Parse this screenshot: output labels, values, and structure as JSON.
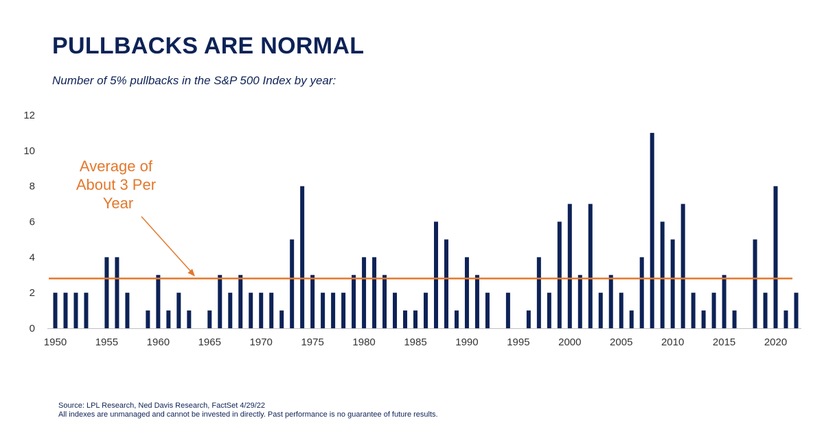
{
  "chart_data": {
    "type": "bar",
    "title": "PULLBACKS ARE NORMAL",
    "subtitle": "Number of 5% pullbacks in the S&P 500 Index by year:",
    "x": [
      1950,
      1951,
      1952,
      1953,
      1954,
      1955,
      1956,
      1957,
      1958,
      1959,
      1960,
      1961,
      1962,
      1963,
      1964,
      1965,
      1966,
      1967,
      1968,
      1969,
      1970,
      1971,
      1972,
      1973,
      1974,
      1975,
      1976,
      1977,
      1978,
      1979,
      1980,
      1981,
      1982,
      1983,
      1984,
      1985,
      1986,
      1987,
      1988,
      1989,
      1990,
      1991,
      1992,
      1993,
      1994,
      1995,
      1996,
      1997,
      1998,
      1999,
      2000,
      2001,
      2002,
      2003,
      2004,
      2005,
      2006,
      2007,
      2008,
      2009,
      2010,
      2011,
      2012,
      2013,
      2014,
      2015,
      2016,
      2017,
      2018,
      2019,
      2020,
      2021,
      2022
    ],
    "values": [
      2,
      2,
      2,
      2,
      0,
      4,
      4,
      2,
      0,
      1,
      3,
      1,
      2,
      1,
      0,
      1,
      3,
      2,
      3,
      2,
      2,
      2,
      1,
      5,
      8,
      3,
      2,
      2,
      2,
      3,
      4,
      4,
      3,
      2,
      1,
      1,
      2,
      6,
      5,
      1,
      4,
      3,
      2,
      0,
      2,
      0,
      1,
      4,
      2,
      6,
      7,
      3,
      7,
      2,
      3,
      2,
      1,
      4,
      11,
      6,
      5,
      7,
      2,
      1,
      2,
      3,
      1,
      0,
      5,
      2,
      8,
      1,
      2
    ],
    "x_ticks": [
      "1950",
      "1955",
      "1960",
      "1965",
      "1970",
      "1975",
      "1980",
      "1985",
      "1990",
      "1995",
      "2000",
      "2005",
      "2010",
      "2015",
      "2020"
    ],
    "y_ticks": [
      "0",
      "2",
      "4",
      "6",
      "8",
      "10",
      "12"
    ],
    "ylim": [
      0,
      12
    ],
    "xlabel": "",
    "ylabel": "",
    "average": 2.8,
    "annotation": [
      "Average of",
      "About 3 Per",
      "Year"
    ],
    "bar_color": "#0d2256",
    "average_line_color": "#e3782c",
    "grid": false
  },
  "footer": {
    "source": "Source: LPL Research, Ned Davis Research, FactSet 4/29/22",
    "disclaimer": "All indexes are unmanaged and cannot be invested in directly. Past performance is no guarantee of future results."
  }
}
